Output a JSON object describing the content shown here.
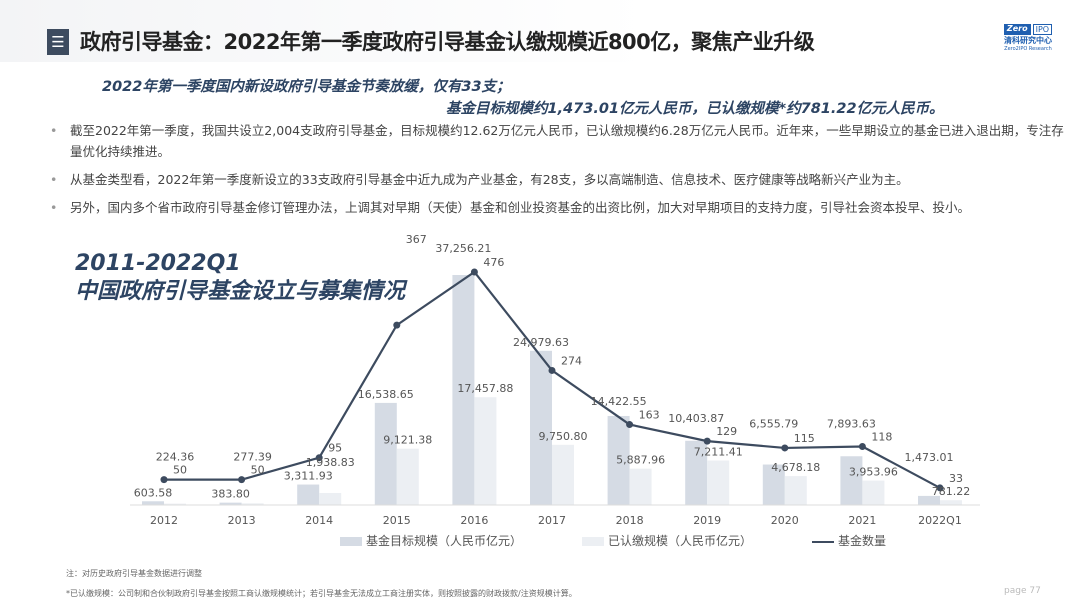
{
  "header": {
    "menu_icon": "list-icon",
    "title": "政府引导基金：2022年第一季度政府引导基金认缴规模近800亿，聚焦产业升级",
    "logo_text": "Zero2IPO 清科研究中心 Zero2IPO Research"
  },
  "subtitle": {
    "line1": "2022年第一季度国内新设政府引导基金节奏放缓，仅有33支；",
    "line2": "基金目标规模约1,473.01亿元人民币，已认缴规模*约781.22亿元人民币。"
  },
  "bullets": [
    "截至2022年第一季度，我国共设立2,004支政府引导基金，目标规模约12.62万亿元人民币，已认缴规模约6.28万亿元人民币。近年来，一些早期设立的基金已进入退出期，专注存量优化持续推进。",
    "从基金类型看，2022年第一季度新设立的33支政府引导基金中近九成为产业基金，有28支，多以高端制造、信息技术、医疗健康等战略新兴产业为主。",
    "另外，国内多个省市政府引导基金修订管理办法，上调其对早期（天使）基金和创业投资基金的出资比例，加大对早期项目的支持力度，引导社会资本投早、投小。"
  ],
  "chart_data": {
    "type": "bar+line",
    "title_line1": "2011-2022Q1",
    "title_line2": "中国政府引导基金设立与募集情况",
    "categories": [
      "2012",
      "2013",
      "2014",
      "2015",
      "2016",
      "2017",
      "2018",
      "2019",
      "2020",
      "2021",
      "2022Q1"
    ],
    "series": [
      {
        "name": "基金目标规模（人民币亿元）",
        "type": "bar",
        "color": "#d5dbe4",
        "values": [
          603.58,
          383.8,
          3311.93,
          16538.65,
          37256.21,
          24979.63,
          14422.55,
          10403.87,
          6555.79,
          7893.63,
          1473.01
        ]
      },
      {
        "name": "已认缴规模（人民币亿元）",
        "type": "bar",
        "color": "#eceff3",
        "values": [
          224.36,
          277.39,
          1938.83,
          9121.38,
          17457.88,
          9750.8,
          5887.96,
          7211.41,
          4678.18,
          3953.96,
          781.22
        ]
      },
      {
        "name": "基金数量",
        "type": "line",
        "color": "#3d4b5f",
        "values": [
          50,
          50,
          95,
          367,
          476,
          274,
          163,
          129,
          115,
          118,
          33
        ]
      }
    ],
    "labels_target": [
      "603.58",
      "383.80",
      "3,311.93",
      "16,538.65",
      "37,256.21",
      "24,979.63",
      "14,422.55",
      "10,403.87",
      "6,555.79",
      "7,893.63",
      "1,473.01"
    ],
    "labels_paid": [
      "224.36",
      "277.39",
      "1,938.83",
      "9,121.38",
      "17,457.88",
      "9,750.80",
      "5,887.96",
      "7,211.41",
      "4,678.18",
      "3,953.96",
      "781.22"
    ],
    "legend_position": "bottom"
  },
  "notes": {
    "note1": "注：对历史政府引导基金数据进行调整",
    "note2": "*已认缴规模：公司制和合伙制政府引导基金按照工商认缴规模统计；若引导基金无法成立工商注册实体，则按照披露的财政拨款/注资规模计算。"
  },
  "page": "page 77"
}
